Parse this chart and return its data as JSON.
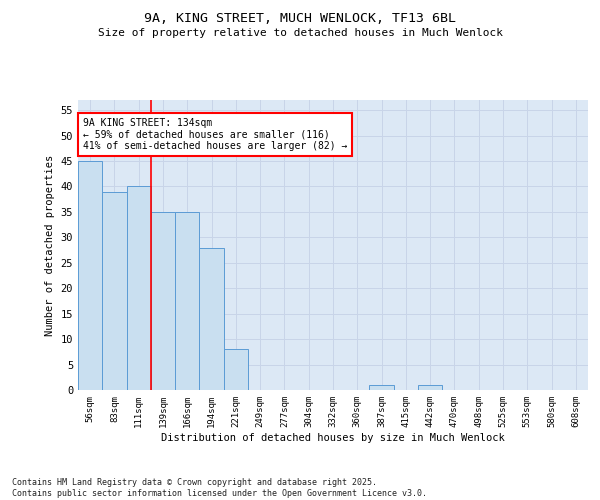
{
  "title_line1": "9A, KING STREET, MUCH WENLOCK, TF13 6BL",
  "title_line2": "Size of property relative to detached houses in Much Wenlock",
  "xlabel": "Distribution of detached houses by size in Much Wenlock",
  "ylabel": "Number of detached properties",
  "categories": [
    "56sqm",
    "83sqm",
    "111sqm",
    "139sqm",
    "166sqm",
    "194sqm",
    "221sqm",
    "249sqm",
    "277sqm",
    "304sqm",
    "332sqm",
    "360sqm",
    "387sqm",
    "415sqm",
    "442sqm",
    "470sqm",
    "498sqm",
    "525sqm",
    "553sqm",
    "580sqm",
    "608sqm"
  ],
  "values": [
    45,
    39,
    40,
    35,
    35,
    28,
    8,
    0,
    0,
    0,
    0,
    0,
    1,
    0,
    1,
    0,
    0,
    0,
    0,
    0,
    0
  ],
  "bar_color": "#c9dff0",
  "bar_edge_color": "#5b9bd5",
  "vline_x": 2.5,
  "vline_color": "#ff0000",
  "annotation_text": "9A KING STREET: 134sqm\n← 59% of detached houses are smaller (116)\n41% of semi-detached houses are larger (82) →",
  "annotation_box_color": "#ffffff",
  "annotation_box_edge": "#ff0000",
  "ylim": [
    0,
    57
  ],
  "yticks": [
    0,
    5,
    10,
    15,
    20,
    25,
    30,
    35,
    40,
    45,
    50,
    55
  ],
  "grid_color": "#c8d4e8",
  "bg_color": "#dce8f5",
  "fig_bg_color": "#ffffff",
  "footnote": "Contains HM Land Registry data © Crown copyright and database right 2025.\nContains public sector information licensed under the Open Government Licence v3.0."
}
